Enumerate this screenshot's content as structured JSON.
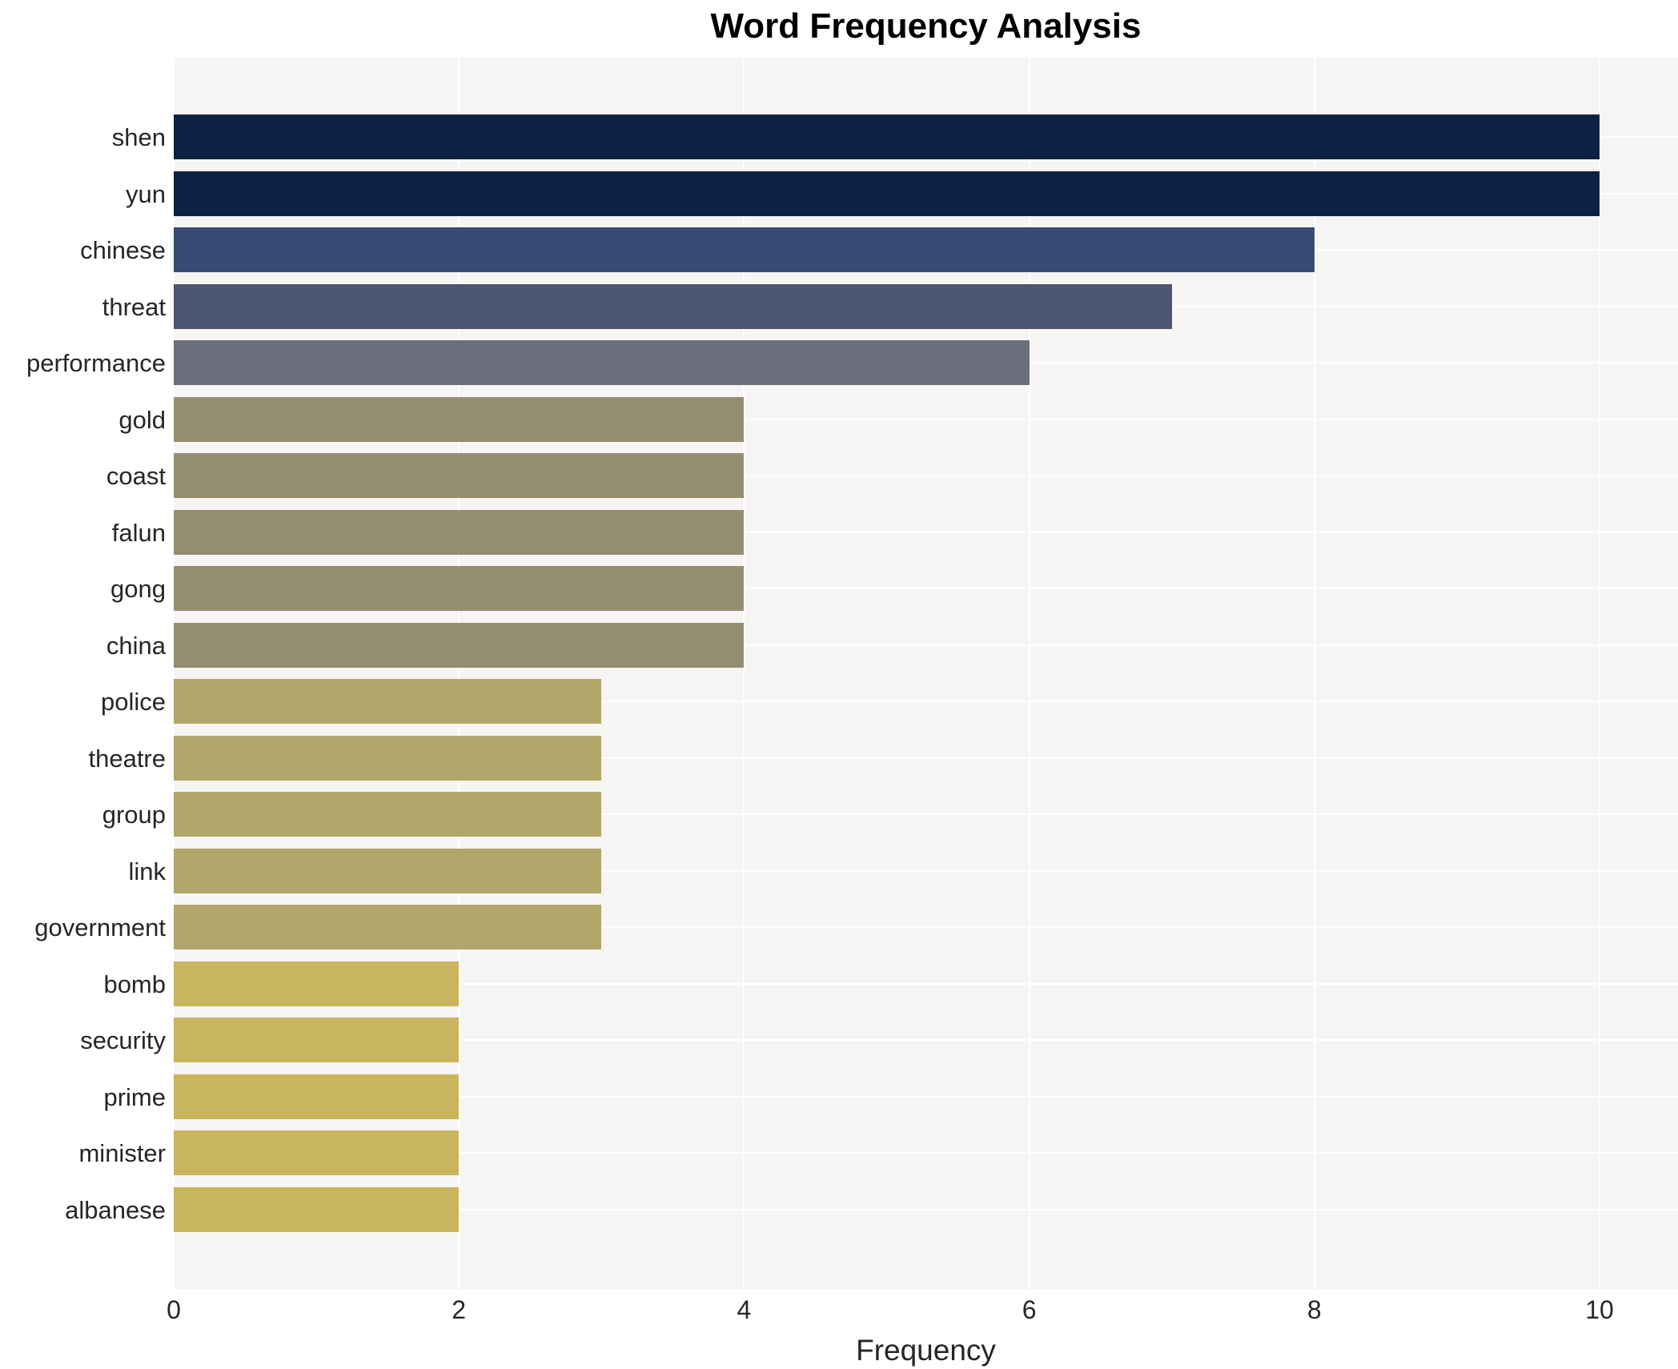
{
  "title": "Word Frequency Analysis",
  "xlabel": "Frequency",
  "chart_data": {
    "type": "bar",
    "orientation": "horizontal",
    "title": "Word Frequency Analysis",
    "xlabel": "Frequency",
    "ylabel": "",
    "categories": [
      "shen",
      "yun",
      "chinese",
      "threat",
      "performance",
      "gold",
      "coast",
      "falun",
      "gong",
      "china",
      "police",
      "theatre",
      "group",
      "link",
      "government",
      "bomb",
      "security",
      "prime",
      "minister",
      "albanese"
    ],
    "values": [
      10,
      10,
      8,
      7,
      6,
      4,
      4,
      4,
      4,
      4,
      3,
      3,
      3,
      3,
      3,
      2,
      2,
      2,
      2,
      2
    ],
    "bar_colors": [
      "#0d2144",
      "#0d2144",
      "#394a72",
      "#4d5670",
      "#6b6f7b",
      "#948d72",
      "#948d72",
      "#948d72",
      "#948d72",
      "#948d72",
      "#b2a76a",
      "#b2a76a",
      "#b2a76a",
      "#b2a76a",
      "#b2a76a",
      "#c9b55f",
      "#c9b55f",
      "#c9b55f",
      "#c9b55f",
      "#c9b55f"
    ],
    "value_color_map": {
      "10": "#0d2144",
      "8": "#394a72",
      "7": "#4d5670",
      "6": "#6b6f7b",
      "4": "#948d72",
      "3": "#b2a76a",
      "2": "#c9b55f"
    },
    "xticks": [
      0,
      2,
      4,
      6,
      8,
      10
    ],
    "xlim": [
      0,
      10.55
    ],
    "grid": "white gridlines on light-gray panel, vertical at x ticks and horizontal at category centers, behind bars",
    "legend": "none",
    "plot_background": "#f6f5f3",
    "gridline_color": "#ffffff",
    "figure_background": "#ffffff"
  }
}
